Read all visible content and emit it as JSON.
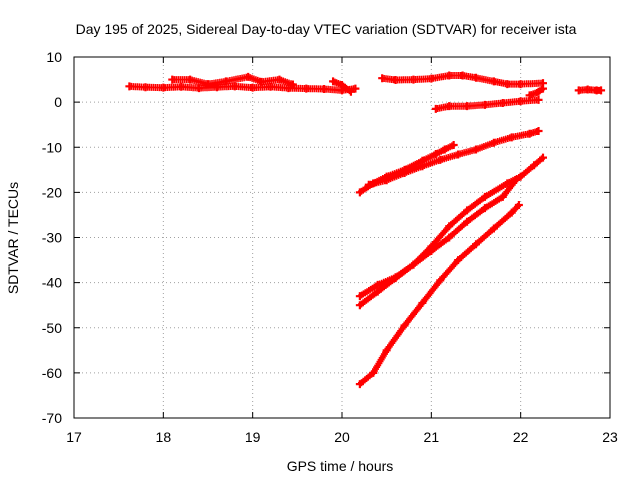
{
  "chart_data": {
    "type": "scatter",
    "title": "Day 195 of 2025, Sidereal Day-to-day VTEC variation (SDTVAR) for receiver ista",
    "xlabel": "GPS time / hours",
    "ylabel": "SDTVAR / TECUs",
    "xlim": [
      17,
      23
    ],
    "ylim": [
      -70,
      10
    ],
    "xticks": [
      17,
      18,
      19,
      20,
      21,
      22,
      23
    ],
    "yticks": [
      10,
      0,
      -10,
      -20,
      -30,
      -40,
      -50,
      -60,
      -70
    ],
    "grid": true,
    "marker": "plus",
    "color": "#ff0000",
    "series": [
      {
        "name": "arc-1",
        "x": [
          17.62,
          17.8,
          18.0,
          18.2,
          18.4,
          18.6,
          18.8,
          19.0,
          19.2,
          19.4,
          19.6,
          19.8,
          20.0,
          20.15
        ],
        "y": [
          3.5,
          3.3,
          3.2,
          3.4,
          3.1,
          3.3,
          3.5,
          3.2,
          3.4,
          3.1,
          3.0,
          2.9,
          2.6,
          3.0
        ]
      },
      {
        "name": "arc-2",
        "x": [
          18.1,
          18.3,
          18.5,
          18.7,
          18.95,
          19.1,
          19.3,
          19.45
        ],
        "y": [
          5.0,
          5.0,
          4.0,
          4.6,
          5.6,
          4.5,
          5.0,
          3.9
        ]
      },
      {
        "name": "arc-3",
        "x": [
          19.9,
          20.0,
          20.1
        ],
        "y": [
          4.6,
          3.8,
          2.3
        ]
      },
      {
        "name": "arc-4",
        "x": [
          20.45,
          20.6,
          20.8,
          21.0,
          21.2,
          21.35,
          21.5,
          21.7,
          21.85,
          22.0,
          22.25
        ],
        "y": [
          5.3,
          4.9,
          5.0,
          5.2,
          5.9,
          5.9,
          5.4,
          4.6,
          4.0,
          4.0,
          4.2
        ]
      },
      {
        "name": "arc-5",
        "x": [
          21.05,
          21.2,
          21.4,
          21.6,
          21.8,
          22.0,
          22.2
        ],
        "y": [
          -1.5,
          -0.9,
          -0.9,
          -0.6,
          -0.2,
          0.2,
          0.5
        ]
      },
      {
        "name": "arc-6",
        "x": [
          22.1,
          22.2,
          22.25
        ],
        "y": [
          1.5,
          2.3,
          3.0
        ]
      },
      {
        "name": "arc-7",
        "x": [
          22.65,
          22.75,
          22.85,
          22.9
        ],
        "y": [
          2.6,
          2.8,
          2.6,
          2.6
        ]
      },
      {
        "name": "arc-8",
        "x": [
          20.2,
          20.35,
          20.5,
          20.7,
          20.9,
          21.05,
          21.15,
          21.25
        ],
        "y": [
          -20.0,
          -18.0,
          -16.5,
          -15.0,
          -13.0,
          -11.5,
          -10.5,
          -9.5
        ]
      },
      {
        "name": "arc-9",
        "x": [
          20.3,
          20.5,
          20.7,
          20.9,
          21.1,
          21.3,
          21.5,
          21.7,
          21.9,
          22.1,
          22.2
        ],
        "y": [
          -18.3,
          -17.3,
          -15.7,
          -14.2,
          -12.8,
          -11.6,
          -10.5,
          -9.0,
          -7.8,
          -7.0,
          -6.4
        ]
      },
      {
        "name": "arc-10",
        "x": [
          20.2,
          20.4,
          20.6,
          20.8,
          21.0,
          21.2,
          21.4,
          21.6,
          21.85,
          22.0,
          22.15,
          22.25
        ],
        "y": [
          -43.0,
          -40.5,
          -38.8,
          -36.0,
          -32.0,
          -27.5,
          -24.0,
          -21.0,
          -18.0,
          -16.5,
          -14.0,
          -12.3
        ]
      },
      {
        "name": "arc-11",
        "x": [
          20.2,
          20.4,
          20.6,
          20.8,
          21.0,
          21.2,
          21.4,
          21.6,
          21.8,
          21.95
        ],
        "y": [
          -45.0,
          -42.0,
          -39.0,
          -36.0,
          -33.0,
          -30.0,
          -26.5,
          -23.5,
          -21.0,
          -17.2
        ]
      },
      {
        "name": "arc-12",
        "x": [
          20.2,
          20.35,
          20.5,
          20.7,
          20.9,
          21.1,
          21.3,
          21.5,
          21.7,
          21.9,
          21.98
        ],
        "y": [
          -62.5,
          -60.0,
          -55.0,
          -49.5,
          -44.5,
          -39.5,
          -35.0,
          -31.5,
          -28.0,
          -24.5,
          -22.8
        ]
      }
    ]
  }
}
